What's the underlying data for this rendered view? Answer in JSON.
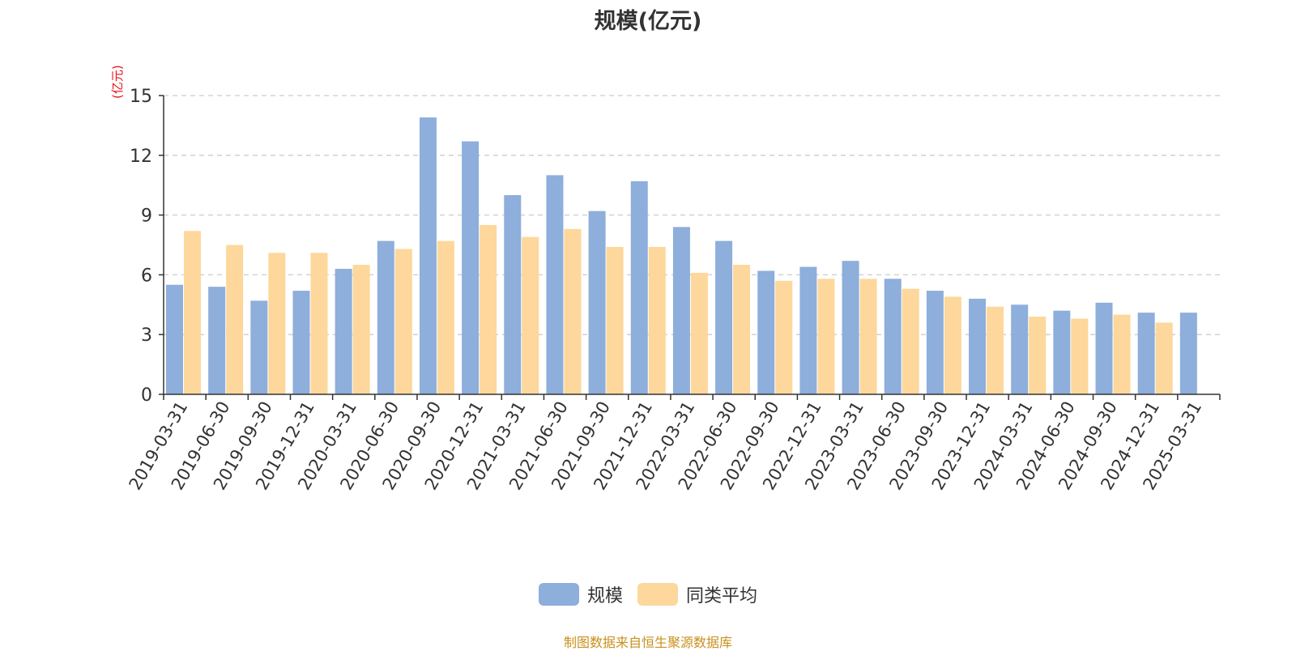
{
  "colors": {
    "series_1": "#8eaedb",
    "series_2": "#fdd79b",
    "title": "#333333",
    "unit": "#e8101a",
    "source": "#c8901e",
    "grid": "#cccccc",
    "axis": "#333333"
  },
  "chart_data": {
    "type": "bar",
    "title": "规模(亿元)",
    "ylabel": "(亿元)",
    "xlabel": "",
    "ylim": [
      0,
      15
    ],
    "yticks": [
      "0",
      "3",
      "6",
      "9",
      "12",
      "15"
    ],
    "grid": true,
    "legend_placement": "bottom-center",
    "categories": [
      "2019-03-31",
      "2019-06-30",
      "2019-09-30",
      "2019-12-31",
      "2020-03-31",
      "2020-06-30",
      "2020-09-30",
      "2020-12-31",
      "2021-03-31",
      "2021-06-30",
      "2021-09-30",
      "2021-12-31",
      "2022-03-31",
      "2022-06-30",
      "2022-09-30",
      "2022-12-31",
      "2023-03-31",
      "2023-06-30",
      "2023-09-30",
      "2023-12-31",
      "2024-03-31",
      "2024-06-30",
      "2024-09-30",
      "2024-12-31",
      "2025-03-31"
    ],
    "series": [
      {
        "name": "规模",
        "values": [
          5.5,
          5.4,
          4.7,
          5.2,
          6.3,
          7.7,
          13.9,
          12.7,
          10.0,
          11.0,
          9.2,
          10.7,
          8.4,
          7.7,
          6.2,
          6.4,
          6.7,
          5.8,
          5.2,
          4.8,
          4.5,
          4.2,
          4.6,
          4.1,
          4.1
        ]
      },
      {
        "name": "同类平均",
        "values": [
          8.2,
          7.5,
          7.1,
          7.1,
          6.5,
          7.3,
          7.7,
          8.5,
          7.9,
          8.3,
          7.4,
          7.4,
          6.1,
          6.5,
          5.7,
          5.8,
          5.8,
          5.3,
          4.9,
          4.4,
          3.9,
          3.8,
          4.0,
          3.6,
          null
        ]
      }
    ]
  },
  "legend": {
    "items": [
      {
        "label": "规模"
      },
      {
        "label": "同类平均"
      }
    ]
  },
  "footer": {
    "source": "制图数据来自恒生聚源数据库"
  }
}
